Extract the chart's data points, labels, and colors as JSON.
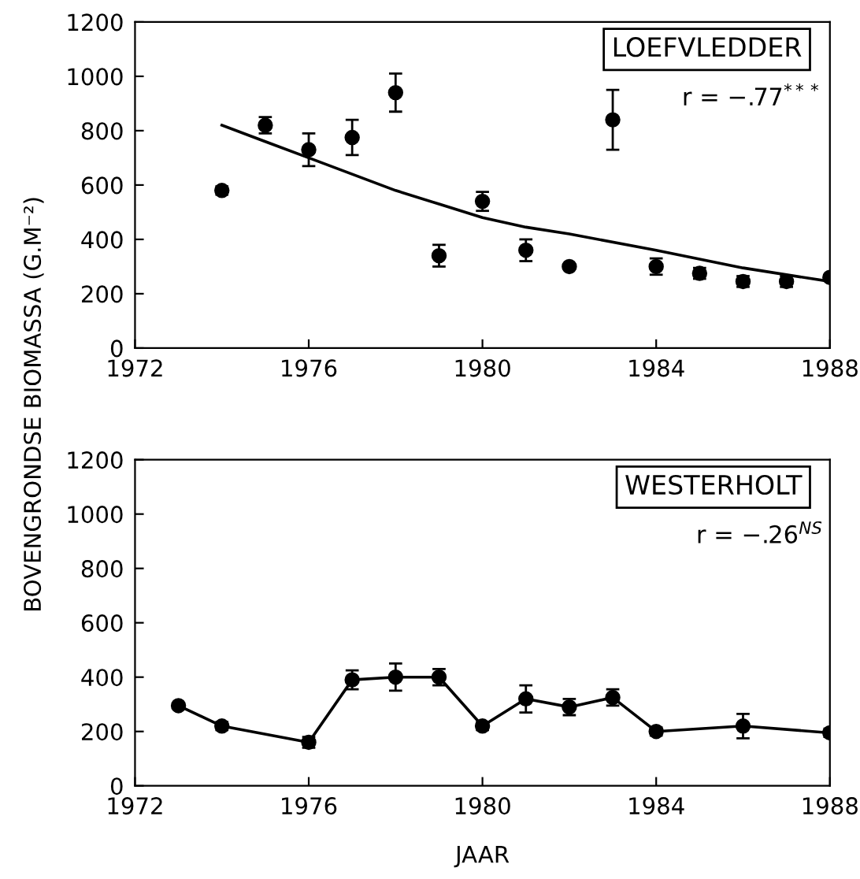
{
  "chart_data": [
    {
      "type": "scatter",
      "title": "LOEFVLEDDER",
      "ylabel": "BOVENGRONDSE BIOMASSA (G.M⁻²)",
      "annotations": [
        "r = −.77$^{***}$"
      ],
      "xlim": [
        1972,
        1988
      ],
      "xticks": [
        1972,
        1976,
        1980,
        1984,
        1988
      ],
      "ylim": [
        0,
        1200
      ],
      "yticks": [
        0,
        200,
        400,
        600,
        800,
        1000,
        1200
      ],
      "grid": false,
      "legend": false,
      "marker": "circle",
      "series": [
        {
          "color": "#000000",
          "x": [
            1974,
            1975,
            1976,
            1977,
            1978,
            1979,
            1980,
            1981,
            1982,
            1983,
            1984,
            1985,
            1986,
            1987,
            1988
          ],
          "values": [
            580,
            820,
            730,
            775,
            940,
            340,
            540,
            360,
            300,
            840,
            300,
            275,
            245,
            245,
            260
          ],
          "errors": [
            15,
            30,
            60,
            65,
            70,
            40,
            35,
            40,
            null,
            110,
            30,
            20,
            20,
            20,
            null
          ]
        },
        {
          "type": "line",
          "color": "#000000",
          "marker": "none",
          "line_style": "solid",
          "x": [
            1974,
            1975,
            1976,
            1977,
            1978,
            1979,
            1980,
            1981,
            1982,
            1984,
            1986,
            1988
          ],
          "values": [
            820,
            760,
            700,
            640,
            580,
            530,
            480,
            445,
            420,
            360,
            295,
            245
          ]
        }
      ]
    },
    {
      "type": "line",
      "title": "WESTERHOLT",
      "xlabel": "JAAR",
      "annotations": [
        "r = −.26$^{NS}$"
      ],
      "xlim": [
        1972,
        1988
      ],
      "xticks": [
        1972,
        1976,
        1980,
        1984,
        1988
      ],
      "ylim": [
        0,
        1200
      ],
      "yticks": [
        0,
        200,
        400,
        600,
        800,
        1000,
        1200
      ],
      "grid": false,
      "legend": false,
      "marker": "circle",
      "line_style": "solid",
      "series": [
        {
          "color": "#000000",
          "x": [
            1973,
            1974,
            1976,
            1977,
            1978,
            1979,
            1980,
            1981,
            1982,
            1983,
            1984,
            1986,
            1988
          ],
          "values": [
            295,
            220,
            160,
            390,
            400,
            400,
            220,
            320,
            290,
            325,
            200,
            220,
            195
          ],
          "errors": [
            null,
            15,
            20,
            35,
            50,
            30,
            15,
            50,
            30,
            30,
            15,
            45,
            15
          ]
        }
      ]
    }
  ]
}
